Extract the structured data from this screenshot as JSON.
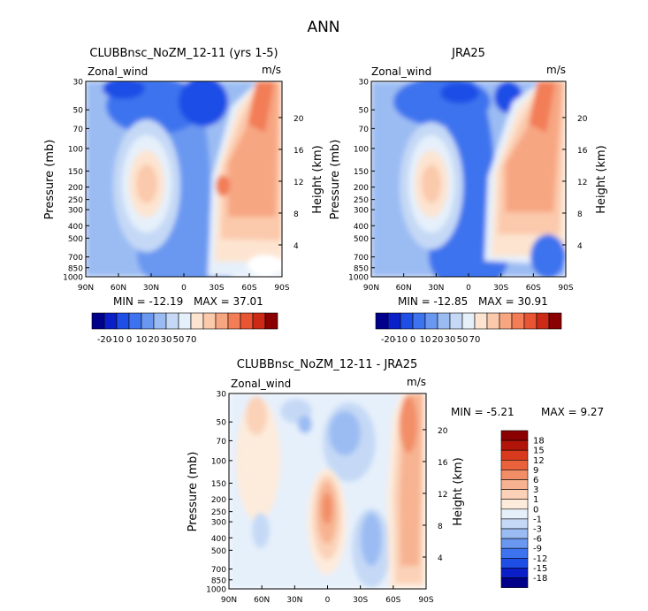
{
  "page_title": "ANN",
  "colors": {
    "zonal_scale": [
      "#00008b",
      "#0a1fc8",
      "#1e4ee6",
      "#3d73ee",
      "#6a98f0",
      "#9bbcf3",
      "#c5d9f6",
      "#e6f0fb",
      "#fde4d0",
      "#fbc9ac",
      "#f7a682",
      "#f27d56",
      "#e95433",
      "#cc2a17",
      "#8b0000"
    ],
    "diff_scale": [
      "#00008b",
      "#0a1fc8",
      "#1e4ee6",
      "#3d73ee",
      "#6a98f0",
      "#9bbcf3",
      "#c5d9f6",
      "#e6f0fb",
      "#fdebdc",
      "#fbd2b7",
      "#f7b391",
      "#f28e67",
      "#ea623c",
      "#d93a1d",
      "#b1150a",
      "#8b0000"
    ]
  },
  "chart_data": [
    {
      "type": "heatmap",
      "title": "CLUBBnsc_NoZM_12-11 (yrs 1-5)",
      "variable": "Zonal_wind",
      "units": "m/s",
      "xlabel": "",
      "ylabel": "Pressure (mb)",
      "ylabel_right": "Height (km)",
      "x_ticks": [
        "90N",
        "60N",
        "30N",
        "0",
        "30S",
        "60S",
        "90S"
      ],
      "y_ticks": [
        "30",
        "50",
        "70",
        "100",
        "150",
        "200",
        "250",
        "300",
        "400",
        "500",
        "700",
        "850",
        "1000"
      ],
      "right_ticks": [
        "20",
        "16",
        "12",
        "8",
        "4"
      ],
      "min_text": "MIN = -12.19",
      "max_text": "MAX = 37.01",
      "min": -12.19,
      "max": 37.01,
      "colorbar_labels": [
        "-20",
        "-10",
        "0",
        "10",
        "20",
        "30",
        "50",
        "70"
      ]
    },
    {
      "type": "heatmap",
      "title": "JRA25",
      "variable": "Zonal_wind",
      "units": "m/s",
      "xlabel": "",
      "ylabel": "Pressure (mb)",
      "ylabel_right": "Height (km)",
      "x_ticks": [
        "90N",
        "60N",
        "30N",
        "0",
        "30S",
        "60S",
        "90S"
      ],
      "y_ticks": [
        "30",
        "50",
        "70",
        "100",
        "150",
        "200",
        "250",
        "300",
        "400",
        "500",
        "700",
        "850",
        "1000"
      ],
      "right_ticks": [
        "20",
        "16",
        "12",
        "8",
        "4"
      ],
      "min_text": "MIN = -12.85",
      "max_text": "MAX = 30.91",
      "min": -12.85,
      "max": 30.91,
      "colorbar_labels": [
        "-20",
        "-10",
        "0",
        "10",
        "20",
        "30",
        "50",
        "70"
      ]
    },
    {
      "type": "heatmap",
      "title": "CLUBBnsc_NoZM_12-11 - JRA25",
      "variable": "Zonal_wind",
      "units": "m/s",
      "xlabel": "",
      "ylabel": "Pressure (mb)",
      "ylabel_right": "Height (km)",
      "x_ticks": [
        "90N",
        "60N",
        "30N",
        "0",
        "30S",
        "60S",
        "90S"
      ],
      "y_ticks": [
        "30",
        "50",
        "70",
        "100",
        "150",
        "200",
        "250",
        "300",
        "400",
        "500",
        "700",
        "850",
        "1000"
      ],
      "right_ticks": [
        "20",
        "16",
        "12",
        "8",
        "4"
      ],
      "min_text": "MIN =   -5.21",
      "max_text": "MAX =    9.27",
      "min": -5.21,
      "max": 9.27,
      "colorbar_labels": [
        "18",
        "15",
        "12",
        "9",
        "6",
        "3",
        "1",
        "0",
        "-1",
        "-3",
        "-6",
        "-9",
        "-12",
        "-15",
        "-18"
      ]
    }
  ]
}
